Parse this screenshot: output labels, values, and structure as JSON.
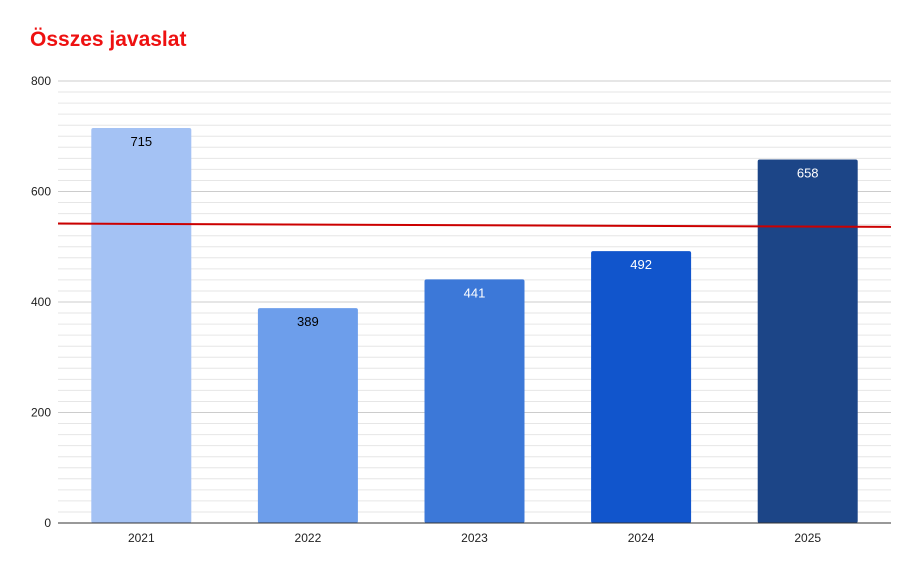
{
  "chart_data": {
    "type": "bar",
    "title": "Összes javaslat",
    "categories": [
      "2021",
      "2022",
      "2023",
      "2024",
      "2025"
    ],
    "values": [
      715,
      389,
      441,
      492,
      658
    ],
    "bar_colors": [
      "#a4c2f4",
      "#6d9eeb",
      "#3c78d8",
      "#1155cc",
      "#1c4587"
    ],
    "label_colors": [
      "#000000",
      "#000000",
      "#ffffff",
      "#ffffff",
      "#ffffff"
    ],
    "ylim": [
      0,
      800
    ],
    "yticks": [
      0,
      200,
      400,
      600,
      800
    ],
    "minor_step": 20,
    "grid": true,
    "trendline": {
      "start": 542,
      "end": 536,
      "color": "#cc0000"
    },
    "colors": {
      "title": "#ee1111",
      "major_grid": "#cccccc",
      "minor_grid": "#e6e6e6",
      "axis": "#333333"
    }
  }
}
